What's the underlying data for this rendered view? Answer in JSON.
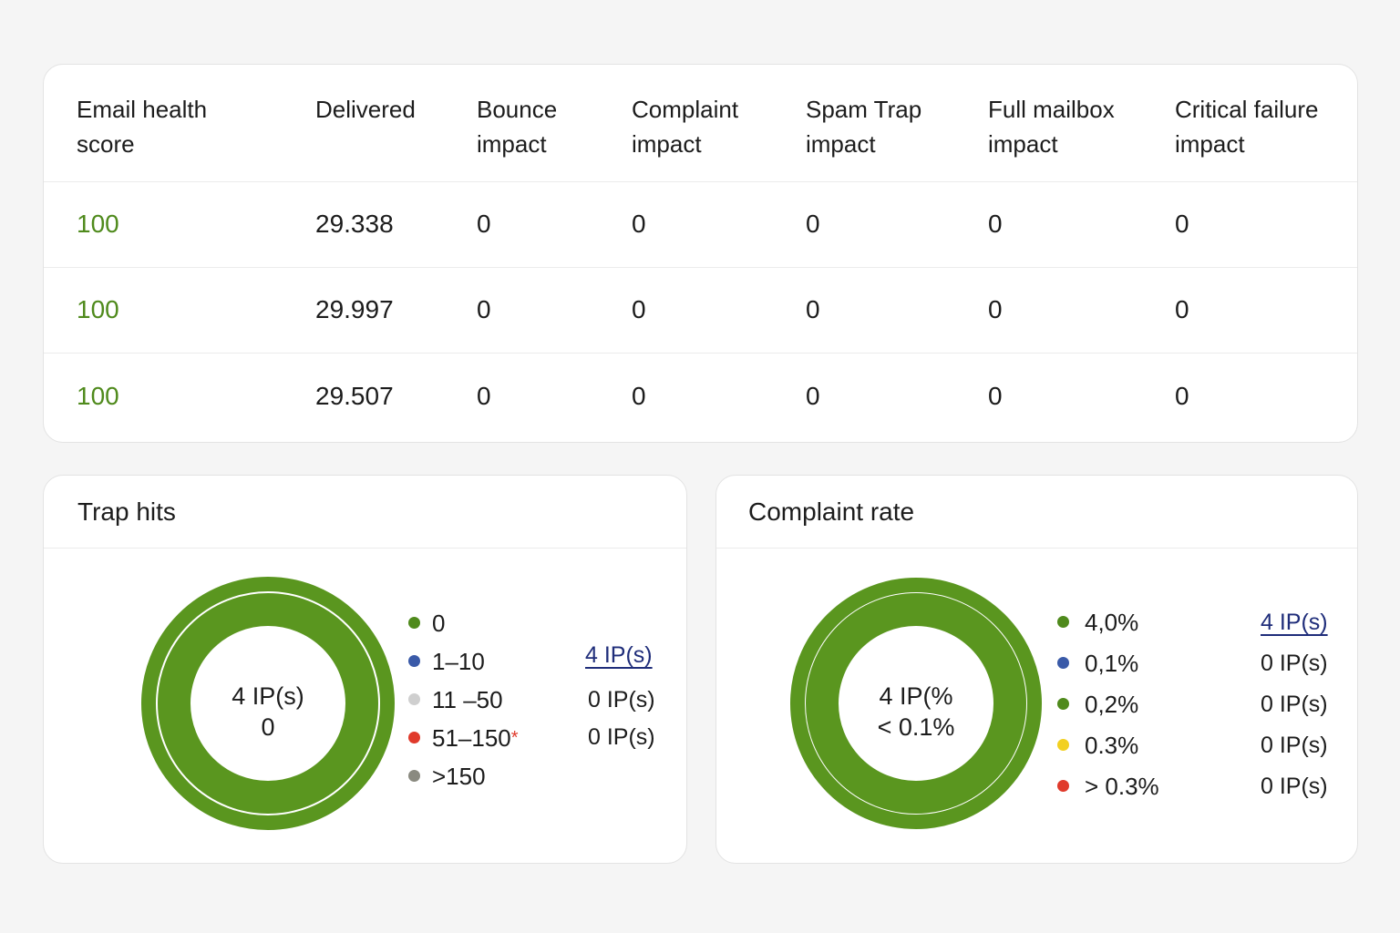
{
  "metrics_table": {
    "headers": [
      "Email health\nscore",
      "Delivered",
      "Bounce\nimpact",
      "Complaint\nimpact",
      "Spam Trap\nimpact",
      "Full mailbox\nimpact",
      "Critical failure\nimpact"
    ],
    "rows": [
      [
        "100",
        "29.338",
        "0",
        "0",
        "0",
        "0",
        "0"
      ],
      [
        "100",
        "29.997",
        "0",
        "0",
        "0",
        "0",
        "0"
      ],
      [
        "100",
        "29.507",
        "0",
        "0",
        "0",
        "0",
        "0"
      ]
    ]
  },
  "trap_hits": {
    "title": "Trap hits",
    "center_line1": "4 IP(s)",
    "center_line2": "0",
    "legend": [
      {
        "label": "0",
        "color": "#4f8a1c",
        "icon": "dot-icon"
      },
      {
        "label": "1–10",
        "color": "#3a5aa8",
        "icon": "dot-icon"
      },
      {
        "label": "11 –50",
        "color": "#cfcfcf",
        "icon": "dot-icon"
      },
      {
        "label": "51–150",
        "color": "#e03a2b",
        "icon": "dot-icon",
        "suffix": "*"
      },
      {
        "label": ">150",
        "color": "#8a8a80",
        "icon": "dot-icon"
      }
    ],
    "ip_counts": [
      "4 IP(s)",
      "0 IP(s)",
      "0 IP(s)"
    ]
  },
  "complaint_rate": {
    "title": "Complaint rate",
    "center_line1": "4 IP(%",
    "center_line2": "< 0.1%",
    "legend": [
      {
        "label": "4,0%",
        "color": "#4f8a1c",
        "icon": "dot-icon"
      },
      {
        "label": "0,1%",
        "color": "#3a5aa8",
        "icon": "dot-icon"
      },
      {
        "label": "0,2%",
        "color": "#4f8a1c",
        "icon": "dot-icon"
      },
      {
        "label": "0.3%",
        "color": "#f2d020",
        "icon": "dot-icon"
      },
      {
        "label": "> 0.3%",
        "color": "#e03a2b",
        "icon": "dot-icon"
      }
    ],
    "ip_counts": [
      "4 IP(s)",
      "0 IP(s)",
      "0 IP(s)",
      "0 IP(s)",
      "0 IP(s)"
    ]
  },
  "colors": {
    "accent_green": "#5a961f",
    "score_green": "#4f8a1c",
    "link_blue": "#1f2d7a"
  }
}
